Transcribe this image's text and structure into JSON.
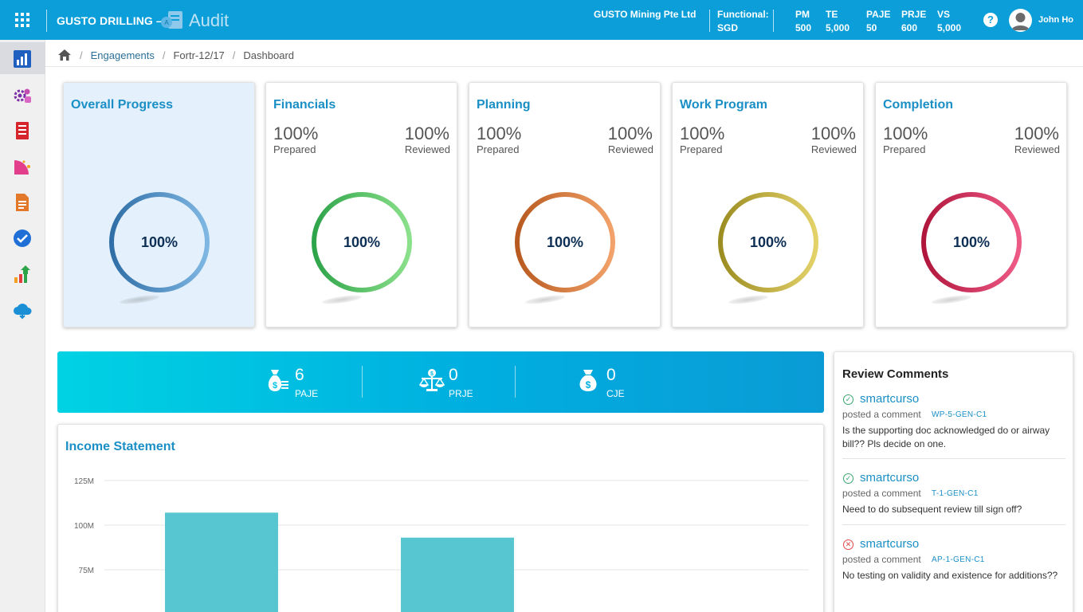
{
  "header": {
    "company": "GUSTO DRILLING –",
    "brand": "Audit",
    "entity": "GUSTO Mining Pte Ltd",
    "functional_label": "Functional:",
    "functional_currency": "SGD",
    "metrics": [
      {
        "label": "PM",
        "value": "500"
      },
      {
        "label": "TE",
        "value": "5,000"
      },
      {
        "label": "PAJE",
        "value": "50"
      },
      {
        "label": "PRJE",
        "value": "600"
      },
      {
        "label": "VS",
        "value": "5,000"
      }
    ],
    "help_icon": "question-icon",
    "user_name": "John Ho"
  },
  "sidebar": {
    "items": [
      {
        "name": "dashboard-icon",
        "active": true
      },
      {
        "name": "settings-gear-icon"
      },
      {
        "name": "ledger-icon"
      },
      {
        "name": "analytics-icon"
      },
      {
        "name": "document-icon"
      },
      {
        "name": "checkmark-icon"
      },
      {
        "name": "growth-chart-icon"
      },
      {
        "name": "cloud-icon"
      }
    ]
  },
  "breadcrumb": {
    "home_icon": "home-icon",
    "items": [
      "Engagements",
      "Fortr-12/17",
      "Dashboard"
    ]
  },
  "progress_cards": [
    {
      "title": "Overall Progress",
      "center": "100%",
      "value": 1.0,
      "colors": [
        "#2f6ea6",
        "#7fb7e3"
      ]
    },
    {
      "title": "Financials",
      "prepared": "100%",
      "prepared_label": "Prepared",
      "reviewed": "100%",
      "reviewed_label": "Reviewed",
      "center": "100%",
      "value": 1.0,
      "colors": [
        "#2ea44a",
        "#8be08b"
      ]
    },
    {
      "title": "Planning",
      "prepared": "100%",
      "prepared_label": "Prepared",
      "reviewed": "100%",
      "reviewed_label": "Reviewed",
      "center": "100%",
      "value": 1.0,
      "colors": [
        "#b85a1f",
        "#f2a26a"
      ]
    },
    {
      "title": "Work Program",
      "prepared": "100%",
      "prepared_label": "Prepared",
      "reviewed": "100%",
      "reviewed_label": "Reviewed",
      "center": "100%",
      "value": 1.0,
      "colors": [
        "#9c8d22",
        "#e3d26a"
      ]
    },
    {
      "title": "Completion",
      "prepared": "100%",
      "prepared_label": "Prepared",
      "reviewed": "100%",
      "reviewed_label": "Reviewed",
      "center": "100%",
      "value": 1.0,
      "colors": [
        "#b0163c",
        "#ee5a86"
      ]
    }
  ],
  "stats": [
    {
      "value": "6",
      "label": "PAJE",
      "icon": "money-bag-list-icon"
    },
    {
      "value": "0",
      "label": "PRJE",
      "icon": "balance-scale-icon"
    },
    {
      "value": "0",
      "label": "CJE",
      "icon": "money-bag-icon"
    }
  ],
  "income_statement": {
    "title": "Income Statement"
  },
  "chart_data": {
    "type": "bar",
    "title": "Income Statement",
    "yticks": [
      "125M",
      "100M",
      "75M"
    ],
    "ytick_values": [
      125,
      100,
      75
    ],
    "values": [
      107,
      93
    ],
    "unit": "M",
    "color": "#57c6d0"
  },
  "reviews": {
    "title": "Review Comments",
    "items": [
      {
        "status": "ok",
        "user": "smartcurso",
        "posted": "posted a comment",
        "code": "WP-5-GEN-C1",
        "text": "Is the supporting doc acknowledged do or airway bill?? Pls decide on one."
      },
      {
        "status": "ok",
        "user": "smartcurso",
        "posted": "posted a comment",
        "code": "T-1-GEN-C1",
        "text": "Need to do subsequent review till sign off?"
      },
      {
        "status": "bad",
        "user": "smartcurso",
        "posted": "posted a comment",
        "code": "AP-1-GEN-C1",
        "text": "No testing on validity and existence for additions??"
      }
    ]
  }
}
